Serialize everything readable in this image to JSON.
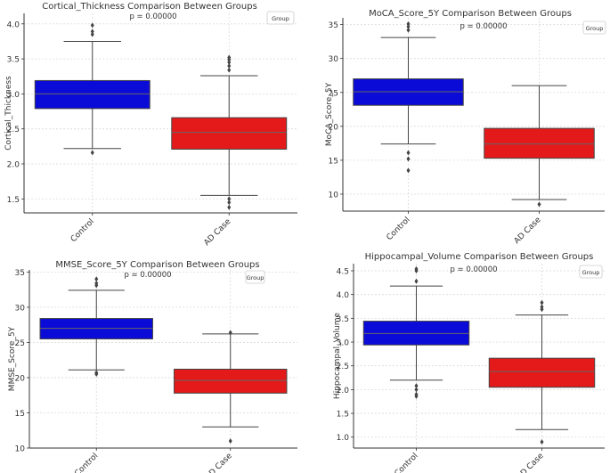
{
  "chart_data": [
    {
      "type": "box",
      "title": "Cortical_Thickness Comparison Between Groups",
      "annotation": "p = 0.00000",
      "legend_title": "Group",
      "legend_position": "top-right",
      "xlabel": "",
      "ylabel": "Cortical_Thickness",
      "ylim": [
        1.3,
        4.15
      ],
      "yticks": [
        1.5,
        2.0,
        2.5,
        3.0,
        3.5,
        4.0
      ],
      "ytick_labels": [
        "1.5",
        "2.0",
        "2.5",
        "3.0",
        "3.5",
        "4.0"
      ],
      "grid": true,
      "categories": [
        "Control",
        "AD Case"
      ],
      "boxes": [
        {
          "group": "Control",
          "color": "#0b0bd8",
          "whisker_low": 2.22,
          "q1": 2.79,
          "median": 3.0,
          "q3": 3.19,
          "whisker_high": 3.75,
          "outliers": [
            3.85,
            3.89,
            3.98,
            2.16
          ]
        },
        {
          "group": "AD Case",
          "color": "#e41a1a",
          "whisker_low": 1.55,
          "q1": 2.21,
          "median": 2.45,
          "q3": 2.66,
          "whisker_high": 3.26,
          "outliers": [
            3.34,
            3.4,
            3.45,
            3.49,
            3.52,
            1.5,
            1.45,
            1.38
          ]
        }
      ]
    },
    {
      "type": "box",
      "title": "MoCA_Score_5Y Comparison Between Groups",
      "annotation": "p = 0.00000",
      "legend_title": "Group",
      "legend_position": "top-right",
      "xlabel": "",
      "ylabel": "MoCA_Score_5Y",
      "ylim": [
        7.5,
        36.0
      ],
      "yticks": [
        10,
        15,
        20,
        25,
        30,
        35
      ],
      "ytick_labels": [
        "10",
        "15",
        "20",
        "25",
        "30",
        "35"
      ],
      "grid": true,
      "categories": [
        "Control",
        "AD Case"
      ],
      "boxes": [
        {
          "group": "Control",
          "color": "#0b0bd8",
          "whisker_low": 17.4,
          "q1": 23.1,
          "median": 25.1,
          "q3": 27.0,
          "whisker_high": 33.1,
          "outliers": [
            34.2,
            34.7,
            35.1,
            16.1,
            15.2,
            13.5
          ]
        },
        {
          "group": "AD Case",
          "color": "#e41a1a",
          "whisker_low": 9.2,
          "q1": 15.3,
          "median": 17.4,
          "q3": 19.7,
          "whisker_high": 26.0,
          "outliers": [
            8.5
          ]
        }
      ]
    },
    {
      "type": "box",
      "title": "MMSE_Score_5Y Comparison Between Groups",
      "annotation": "p = 0.00000",
      "legend_title": "Group",
      "legend_position": "top-right",
      "xlabel": "",
      "ylabel": "MMSE_Score_5Y",
      "ylim": [
        10,
        35.3
      ],
      "yticks": [
        10,
        15,
        20,
        25,
        30,
        35
      ],
      "ytick_labels": [
        "10",
        "15",
        "20",
        "25",
        "30",
        "35"
      ],
      "grid": true,
      "categories": [
        "Control",
        "AD Case"
      ],
      "boxes": [
        {
          "group": "Control",
          "color": "#0b0bd8",
          "whisker_low": 21.1,
          "q1": 25.5,
          "median": 27.0,
          "q3": 28.4,
          "whisker_high": 32.4,
          "outliers": [
            33.1,
            33.4,
            34.0,
            20.7,
            20.5
          ]
        },
        {
          "group": "AD Case",
          "color": "#e41a1a",
          "whisker_low": 13.0,
          "q1": 17.8,
          "median": 19.6,
          "q3": 21.2,
          "whisker_high": 26.2,
          "outliers": [
            26.4,
            11.0
          ]
        }
      ]
    },
    {
      "type": "box",
      "title": "Hippocampal_Volume Comparison Between Groups",
      "annotation": "p = 0.00000",
      "legend_title": "Group",
      "legend_position": "top-right",
      "xlabel": "",
      "ylabel": "Hippocampal_Volume",
      "ylim": [
        0.77,
        4.65
      ],
      "yticks": [
        1.0,
        1.5,
        2.0,
        2.5,
        3.0,
        3.5,
        4.0,
        4.5
      ],
      "ytick_labels": [
        "1.0",
        "1.5",
        "2.0",
        "2.5",
        "3.0",
        "3.5",
        "4.0",
        "4.5"
      ],
      "grid": true,
      "categories": [
        "Control",
        "AD Case"
      ],
      "boxes": [
        {
          "group": "Control",
          "color": "#0b0bd8",
          "whisker_low": 2.2,
          "q1": 2.94,
          "median": 3.18,
          "q3": 3.44,
          "whisker_high": 4.18,
          "outliers": [
            4.28,
            4.5,
            4.54,
            2.08,
            2.0,
            1.9,
            1.86
          ]
        },
        {
          "group": "AD Case",
          "color": "#e41a1a",
          "whisker_low": 1.16,
          "q1": 2.05,
          "median": 2.38,
          "q3": 2.66,
          "whisker_high": 3.57,
          "outliers": [
            3.69,
            3.74,
            3.83,
            0.9
          ]
        }
      ]
    }
  ]
}
